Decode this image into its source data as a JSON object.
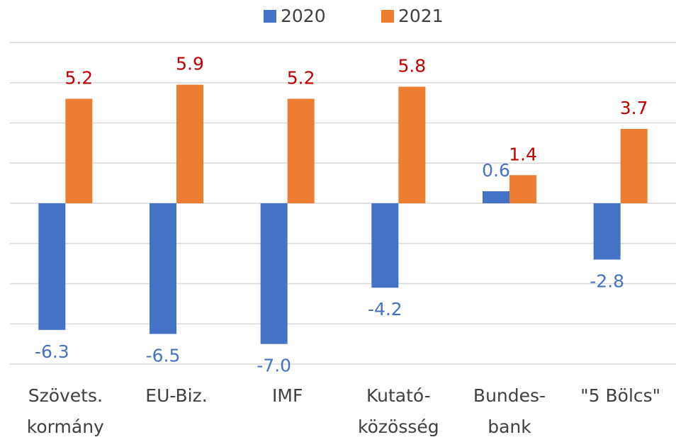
{
  "chart_data": {
    "type": "bar",
    "categories": [
      "Szövets.\nkormány",
      "EU-Biz.",
      "IMF",
      "Kutató-\nközösség",
      "Bundes-\nbank",
      "\"5 Bölcs\""
    ],
    "series": [
      {
        "name": "2020",
        "color": "#4472c4",
        "label_color": "#4472c4",
        "values": [
          -6.3,
          -6.5,
          -7.0,
          -4.2,
          0.6,
          -2.8
        ],
        "value_labels": [
          "-6.3",
          "-6.5",
          "-7.0",
          "-4.2",
          "0.6",
          "-2.8"
        ]
      },
      {
        "name": "2021",
        "color": "#ed7d31",
        "label_color": "#c00000",
        "values": [
          5.2,
          5.9,
          5.2,
          5.8,
          1.4,
          3.7
        ],
        "value_labels": [
          "5.2",
          "5.9",
          "5.2",
          "5.8",
          "1.4",
          "3.7"
        ]
      }
    ],
    "ylim": [
      -8,
      8
    ],
    "yticks": [
      -8,
      -6,
      -4,
      -2,
      0,
      2,
      4,
      6,
      8
    ],
    "grid": true,
    "legend": "top"
  }
}
